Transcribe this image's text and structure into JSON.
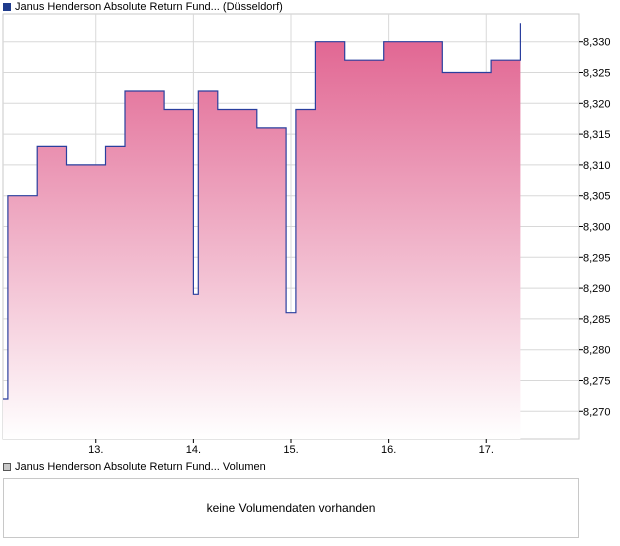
{
  "legend": {
    "price_label": "Janus Henderson Absolute Return Fund... (Düsseldorf)",
    "volume_label": "Janus Henderson Absolute Return Fund... Volumen"
  },
  "volume": {
    "empty_message": "keine Volumendaten vorhanden"
  },
  "colors": {
    "line": "#2a3f9e",
    "fill_top": "#e0608e",
    "fill_bottom": "#ffffff",
    "grid": "#d8d8d8",
    "frame": "#c8c8c8"
  },
  "chart_data": {
    "type": "area",
    "ylim": [
      8.2655,
      8.3345
    ],
    "y_ticks": [
      8.27,
      8.275,
      8.28,
      8.285,
      8.29,
      8.295,
      8.3,
      8.305,
      8.31,
      8.315,
      8.32,
      8.325,
      8.33
    ],
    "y_tick_labels": [
      "8,270",
      "8,275",
      "8,280",
      "8,285",
      "8,290",
      "8,295",
      "8,300",
      "8,305",
      "8,310",
      "8,315",
      "8,320",
      "8,325",
      "8,330"
    ],
    "xlim": [
      12.05,
      17.95
    ],
    "x_ticks": [
      13,
      14,
      15,
      16,
      17
    ],
    "x_tick_labels": [
      "13.",
      "14.",
      "15.",
      "16.",
      "17."
    ],
    "grid": true,
    "series": [
      {
        "x": [
          12.05,
          12.1,
          12.4,
          12.7,
          13.1,
          13.3,
          13.7,
          14.0,
          14.05,
          14.25,
          14.65,
          14.95,
          15.05,
          15.25,
          15.55,
          15.95,
          16.1,
          16.55,
          16.65,
          17.05,
          17.3,
          17.35
        ],
        "y": [
          8.272,
          8.305,
          8.313,
          8.31,
          8.313,
          8.322,
          8.319,
          8.289,
          8.322,
          8.319,
          8.316,
          8.286,
          8.319,
          8.33,
          8.327,
          8.33,
          8.33,
          8.325,
          8.325,
          8.327,
          8.327,
          8.333
        ]
      }
    ]
  }
}
